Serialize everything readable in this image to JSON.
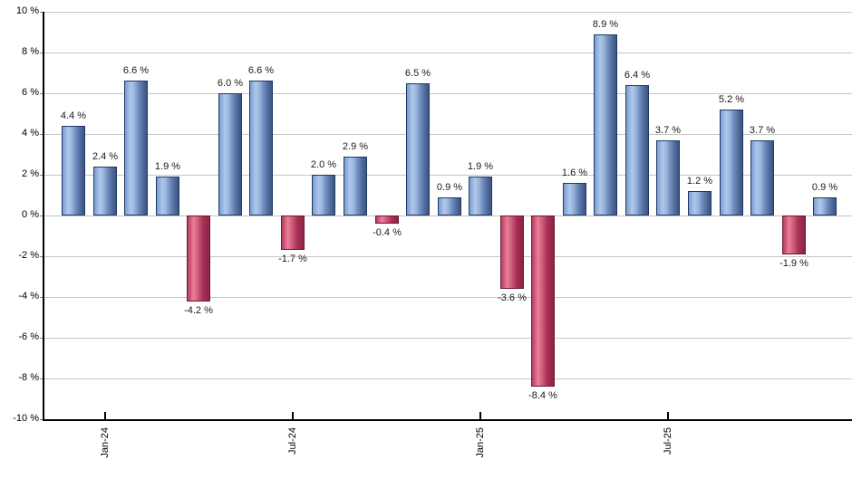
{
  "chart_data": {
    "type": "bar",
    "title": "",
    "xlabel": "",
    "ylabel": "",
    "unit": "%",
    "values": [
      4.4,
      2.4,
      6.6,
      1.9,
      -4.2,
      6.0,
      6.6,
      -1.7,
      2.0,
      2.9,
      -0.4,
      6.5,
      0.9,
      1.9,
      -3.6,
      -8.4,
      1.6,
      8.9,
      6.4,
      3.7,
      1.2,
      5.2,
      3.7,
      -1.9,
      0.9
    ],
    "data_labels": [
      "4.4 %",
      "2.4 %",
      "6.6 %",
      "1.9 %",
      "-4.2 %",
      "6.0 %",
      "6.6 %",
      "-1.7 %",
      "2.0 %",
      "2.9 %",
      "-0.4 %",
      "6.5 %",
      "0.9 %",
      "1.9 %",
      "-3.6 %",
      "-8.4 %",
      "1.6 %",
      "8.9 %",
      "6.4 %",
      "3.7 %",
      "1.2 %",
      "5.2 %",
      "3.7 %",
      "-1.9 %",
      "0.9 %"
    ],
    "x_ticks": [
      {
        "label": "Jan-24",
        "bar_index": 1
      },
      {
        "label": "Jul-24",
        "bar_index": 7
      },
      {
        "label": "Jan-25",
        "bar_index": 13
      },
      {
        "label": "Jul-25",
        "bar_index": 19
      }
    ],
    "y_tick_labels": [
      "10 %",
      "8 %",
      "6 %",
      "4 %",
      "2 %",
      "0 %",
      "-2 %",
      "-4 %",
      "-6 %",
      "-8 %",
      "-10 %"
    ],
    "ylim": [
      -10,
      10
    ],
    "y_step": 2,
    "grid": true,
    "legend": "none",
    "colors": {
      "positive_fill": "#7b9ccf",
      "positive_highlight": "#aec7ea",
      "positive_border": "#1d3a67",
      "negative_fill": "#c74a6b",
      "negative_highlight": "#e77f99",
      "negative_border": "#6e1a33",
      "gridline": "#c6c6c6",
      "axis": "#000000",
      "label_text": "#1a1a1a",
      "background": "#ffffff"
    }
  }
}
